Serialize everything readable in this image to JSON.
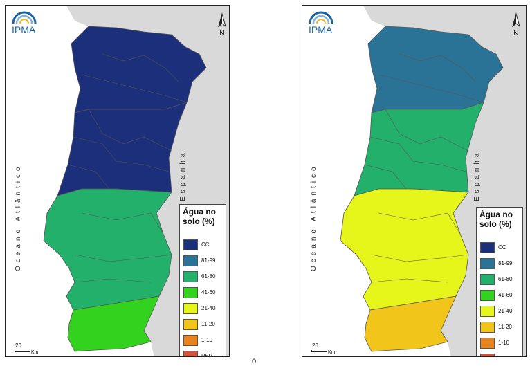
{
  "maps": [
    {
      "id": "left",
      "logo_text": "IPMA",
      "north_label": "N",
      "ocean_label": "Oceano Atlântico",
      "country_label": "Espanha",
      "legend_title": "Água no solo (%)",
      "scale_value": "20",
      "scale_unit": "Km",
      "regions": [
        {
          "zone": "north",
          "class": "CC"
        },
        {
          "zone": "center",
          "class": "CC"
        },
        {
          "zone": "alentejo",
          "class": "61-80"
        },
        {
          "zone": "algarve",
          "class": "41-60"
        }
      ]
    },
    {
      "id": "right",
      "logo_text": "IPMA",
      "north_label": "N",
      "ocean_label": "Oceano Atlântico",
      "country_label": "Espanha",
      "legend_title": "Água no solo (%)",
      "scale_value": "20",
      "scale_unit": "Km",
      "regions": [
        {
          "zone": "north",
          "class": "81-99"
        },
        {
          "zone": "center",
          "class": "61-80"
        },
        {
          "zone": "alentejo",
          "class": "21-40"
        },
        {
          "zone": "algarve",
          "class": "11-20"
        }
      ]
    }
  ],
  "legend": [
    {
      "label": "CC",
      "color": "#1c2f7a"
    },
    {
      "label": "81-99",
      "color": "#2a7396"
    },
    {
      "label": "61-80",
      "color": "#23b06b"
    },
    {
      "label": "41-60",
      "color": "#33d21e"
    },
    {
      "label": "21-40",
      "color": "#e6f51a"
    },
    {
      "label": "11-20",
      "color": "#f2c51b"
    },
    {
      "label": "1-10",
      "color": "#e8831e"
    },
    {
      "label": "PEP",
      "color": "#d3533a"
    }
  ],
  "colors": {
    "sea": "#ffffff",
    "spain": "#d9d9d9",
    "borders": "#555555",
    "logo_blue": "#1a63a6"
  },
  "footer_glyph": "Ŏ"
}
